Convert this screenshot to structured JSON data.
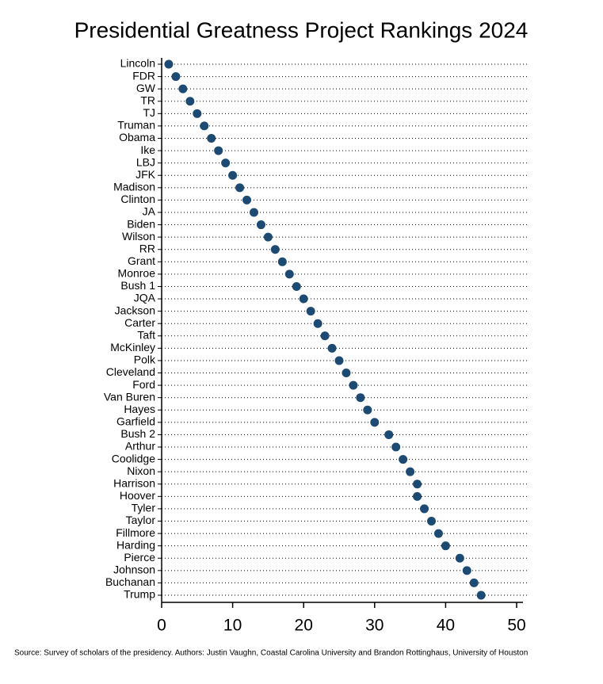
{
  "chart_data": {
    "type": "dot",
    "title": "Presidential Greatness Project Rankings 2024",
    "source": "Source: Survey of scholars of the presidency.  Authors: Justin Vaughn, Coastal Carolina University and Brandon Rottinghaus, University of Houston",
    "categories": [
      "Lincoln",
      "FDR",
      "GW",
      "TR",
      "TJ",
      "Truman",
      "Obama",
      "Ike",
      "LBJ",
      "JFK",
      "Madison",
      "Clinton",
      "JA",
      "Biden",
      "Wilson",
      "RR",
      "Grant",
      "Monroe",
      "Bush 1",
      "JQA",
      "Jackson",
      "Carter",
      "Taft",
      "McKinley",
      "Polk",
      "Cleveland",
      "Ford",
      "Van Buren",
      "Hayes",
      "Garfield",
      "Bush 2",
      "Arthur",
      "Coolidge",
      "Nixon",
      "Harrison",
      "Hoover",
      "Tyler",
      "Taylor",
      "Fillmore",
      "Harding",
      "Pierce",
      "Johnson",
      "Buchanan",
      "Trump"
    ],
    "values": [
      1,
      2,
      3,
      4,
      5,
      6,
      7,
      8,
      9,
      10,
      11,
      12,
      13,
      14,
      15,
      16,
      17,
      18,
      19,
      20,
      21,
      22,
      23,
      24,
      25,
      26,
      27,
      28,
      29,
      30,
      32,
      33,
      34,
      35,
      36,
      36,
      37,
      38,
      39,
      40,
      42,
      43,
      44,
      45
    ],
    "color": "#1c4a72",
    "xlim": [
      0,
      50
    ],
    "xticks": [
      0,
      10,
      20,
      30,
      40,
      50
    ]
  }
}
